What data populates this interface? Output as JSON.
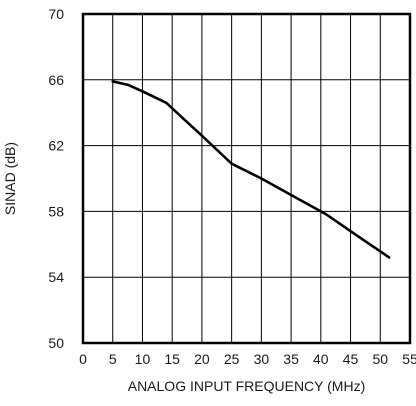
{
  "chart_data": {
    "type": "line",
    "title": "",
    "xlabel": "ANALOG INPUT FREQUENCY (MHz)",
    "ylabel": "SINAD (dB)",
    "xlim": [
      0,
      55
    ],
    "ylim": [
      50,
      70
    ],
    "xticks": [
      0,
      5,
      10,
      15,
      20,
      25,
      30,
      35,
      40,
      45,
      50,
      55
    ],
    "yticks": [
      50,
      54,
      58,
      62,
      66,
      70
    ],
    "grid": true,
    "legend": "none",
    "series": [
      {
        "x": [
          5,
          7.5,
          10,
          14,
          17,
          20,
          25,
          30,
          35,
          40,
          41,
          45,
          51.5
        ],
        "y": [
          65.9,
          65.7,
          65.3,
          64.6,
          63.6,
          62.6,
          60.9,
          60.0,
          59.0,
          58.0,
          57.8,
          56.8,
          55.2
        ]
      }
    ],
    "colors": {
      "line": "#000000",
      "grid": "#000000",
      "frame": "#000000"
    }
  }
}
